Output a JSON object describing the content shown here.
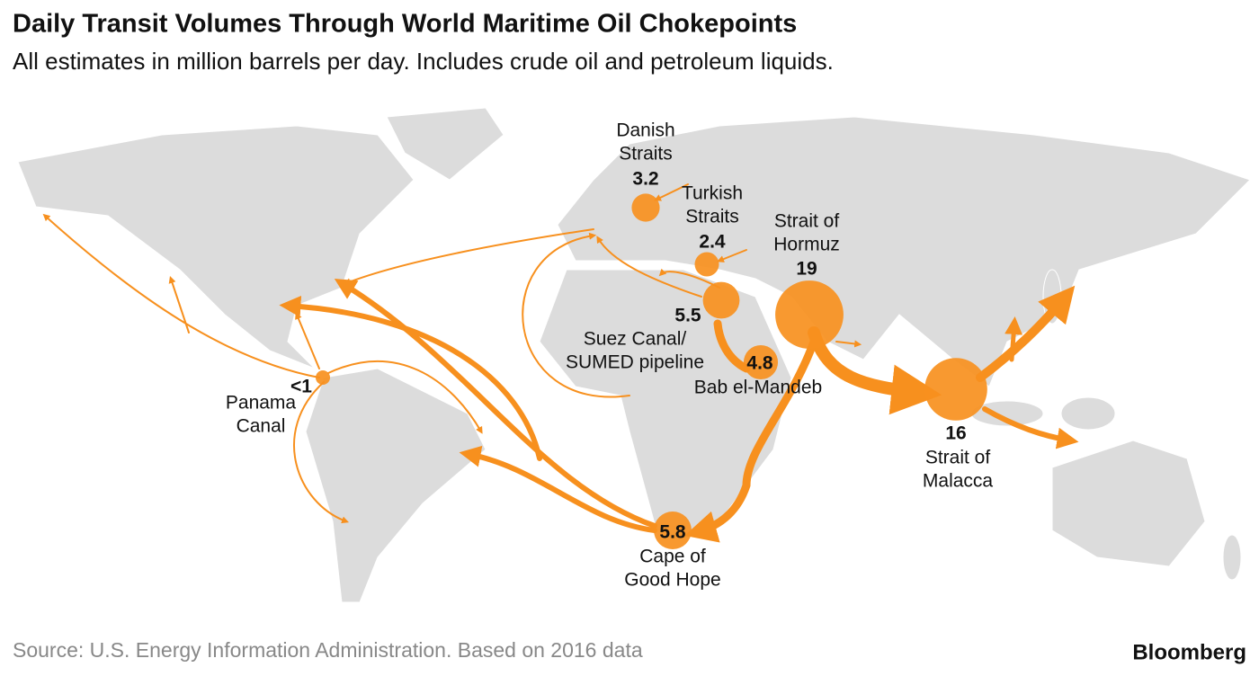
{
  "header": {
    "title": "Daily Transit Volumes Through World Maritime Oil Chokepoints",
    "subtitle": "All estimates in million barrels per day. Includes crude oil and petroleum liquids."
  },
  "chokepoints": [
    {
      "name": [
        "Danish",
        "Straits"
      ],
      "value": 3.2
    },
    {
      "name": [
        "Turkish",
        "Straits"
      ],
      "value": 2.4
    },
    {
      "name": [
        "Strait of",
        "Hormuz"
      ],
      "value": 19
    },
    {
      "name": [
        "Suez Canal/",
        "SUMED pipeline"
      ],
      "value": 5.5
    },
    {
      "name": [
        "Bab el-Mandeb"
      ],
      "value": 4.8
    },
    {
      "name": [
        "Cape of",
        "Good Hope"
      ],
      "value": 5.8
    },
    {
      "name": [
        "Strait of",
        "Malacca"
      ],
      "value": 16
    },
    {
      "name": [
        "Panama",
        "Canal"
      ],
      "label": "<1"
    }
  ],
  "footer": {
    "source": "Source: U.S. Energy Information Administration. Based on 2016 data",
    "brand": "Bloomberg"
  }
}
